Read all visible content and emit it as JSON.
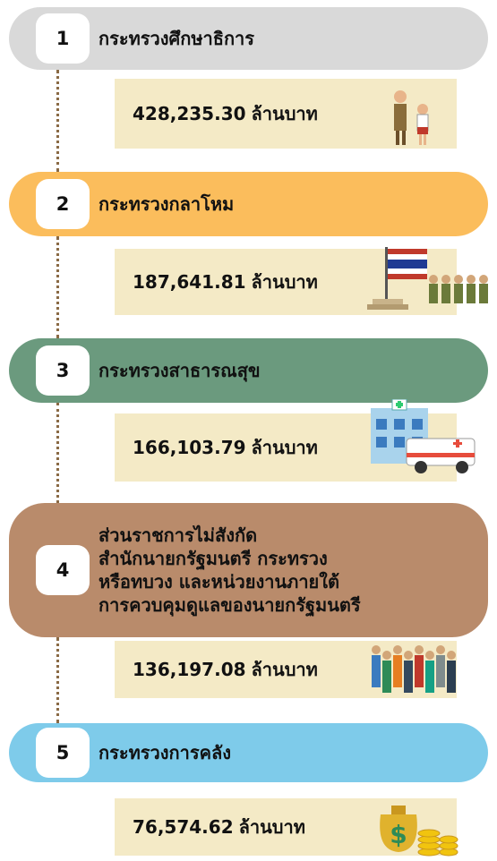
{
  "items": [
    {
      "rank": "1",
      "title_lines": [
        "กระทรวงศึกษาธิการ"
      ],
      "amount": "428,235.30",
      "unit": "ล้านบาท"
    },
    {
      "rank": "2",
      "title_lines": [
        "กระทรวงกลาโหม"
      ],
      "amount": "187,641.81",
      "unit": "ล้านบาท"
    },
    {
      "rank": "3",
      "title_lines": [
        "กระทรวงสาธารณสุข"
      ],
      "amount": "166,103.79",
      "unit": "ล้านบาท"
    },
    {
      "rank": "4",
      "title_lines": [
        "ส่วนราชการไม่สังกัด",
        "สำนักนายกรัฐมนตรี กระทรวง",
        "หรือทบวง และหน่วยงานภายใต้",
        "การควบคุมดูแลของนายกรัฐมนตรี"
      ],
      "amount": "136,197.08",
      "unit": "ล้านบาท"
    },
    {
      "rank": "5",
      "title_lines": [
        "กระทรวงการคลัง"
      ],
      "amount": "76,574.62",
      "unit": "ล้านบาท"
    }
  ]
}
